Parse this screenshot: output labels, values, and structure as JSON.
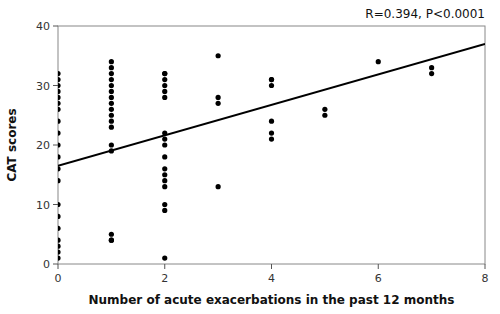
{
  "chart_data": {
    "type": "scatter",
    "title": "R=0.394, P<0.0001",
    "xlabel": "Number of acute exacerbations in the past 12 months",
    "ylabel": "CAT scores",
    "xlim": [
      0,
      8
    ],
    "ylim": [
      0,
      40
    ],
    "xticks": [
      0,
      2,
      4,
      6,
      8
    ],
    "yticks": [
      0,
      10,
      20,
      30,
      40
    ],
    "series": [
      {
        "type": "scatter",
        "color": "#000000",
        "x": [
          0,
          0,
          0,
          0,
          0,
          0,
          0,
          0,
          0,
          0,
          0,
          0,
          0,
          0,
          0,
          0,
          0,
          0,
          0,
          0,
          1,
          1,
          1,
          1,
          1,
          1,
          1,
          1,
          1,
          1,
          1,
          1,
          1,
          1,
          1,
          1,
          1,
          2,
          2,
          2,
          2,
          2,
          2,
          2,
          2,
          2,
          2,
          2,
          2,
          2,
          2,
          2,
          2,
          2,
          3,
          3,
          3,
          3,
          4,
          4,
          4,
          4,
          4,
          4,
          5,
          5,
          6,
          7,
          7
        ],
        "values": [
          32,
          31,
          30,
          29,
          28,
          27,
          26,
          24,
          22,
          20,
          18,
          16,
          14,
          10,
          8,
          6,
          4,
          3,
          2,
          1,
          34,
          33,
          32,
          31,
          30,
          29,
          28,
          27,
          26,
          25,
          24,
          23,
          20,
          19,
          5,
          4,
          4,
          32,
          32,
          31,
          30,
          29,
          28,
          22,
          21,
          20,
          18,
          16,
          15,
          14,
          13,
          10,
          9,
          1,
          35,
          28,
          27,
          13,
          31,
          31,
          30,
          24,
          22,
          21,
          26,
          25,
          34,
          33,
          32
        ]
      },
      {
        "type": "line",
        "color": "#000000",
        "x": [
          0,
          8
        ],
        "values": [
          16.5,
          37.0
        ]
      }
    ]
  }
}
